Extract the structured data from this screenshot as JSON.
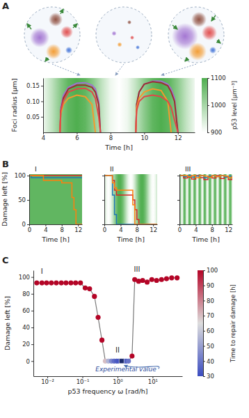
{
  "chart_data": [
    {
      "type": "line",
      "panel_label": "A",
      "x_label": "Time [h]",
      "y_label": "Foci radius [μm]",
      "x": [
        5.0,
        5.05,
        5.2,
        5.5,
        6.0,
        6.5,
        6.9,
        7.1,
        7.3,
        7.4,
        8.5,
        9.5,
        9.55,
        9.7,
        10.0,
        10.5,
        11.0,
        11.4,
        11.6,
        11.8,
        12.0
      ],
      "series": [
        {
          "color": "#a070d0",
          "values": [
            0,
            0.08,
            0.12,
            0.145,
            0.158,
            0.16,
            0.152,
            0.14,
            0.1,
            0,
            null,
            0,
            0.09,
            0.13,
            0.155,
            0.165,
            0.165,
            0.155,
            0.14,
            0.11,
            0
          ]
        },
        {
          "color": "#9a2f2f",
          "values": [
            0,
            0.07,
            0.11,
            0.14,
            0.152,
            0.152,
            0.145,
            0.13,
            0.09,
            0,
            null,
            0,
            0.09,
            0.13,
            0.155,
            0.163,
            0.16,
            0.15,
            0.13,
            0.1,
            0
          ]
        },
        {
          "color": "#f39a2e",
          "values": [
            0,
            0.06,
            0.09,
            0.11,
            0.12,
            0.115,
            0.09,
            0,
            null,
            null,
            null,
            0,
            0.08,
            0.11,
            0.13,
            0.14,
            0.135,
            0.1,
            0,
            null,
            null
          ]
        },
        {
          "color": "#e04848",
          "values": [
            0,
            0.07,
            0.1,
            0.13,
            0.14,
            0.142,
            0.13,
            0.11,
            0.05,
            0,
            null,
            0,
            0.07,
            0.1,
            0.115,
            0.12,
            0.115,
            0.1,
            0.08,
            0.04,
            0
          ]
        }
      ],
      "xlim": [
        4,
        13
      ],
      "xticks": [
        4,
        6,
        8,
        10,
        12
      ],
      "ylim": [
        0,
        0.175
      ],
      "yticks": [
        0.05,
        {
          "value": 0.1,
          "label": "0.10"
        },
        0.15
      ],
      "p53_level": {
        "x": [
          4,
          4.5,
          5,
          5.5,
          6,
          6.5,
          7,
          7.5,
          8,
          8.5,
          9,
          9.5,
          10,
          10.5,
          11,
          11.5,
          12,
          12.5,
          13
        ],
        "values": [
          919,
          969,
          1031,
          1081,
          1100,
          1081,
          1031,
          969,
          919,
          900,
          919,
          969,
          1031,
          1081,
          1100,
          1081,
          1031,
          969,
          919
        ]
      },
      "colorbar": {
        "label": "p53 level [μm⁻³]",
        "range": [
          900,
          1100
        ],
        "ticks": [
          900,
          1000,
          1100
        ]
      }
    },
    {
      "type": "line",
      "panel_label": "B",
      "title": "I",
      "x_label": "Time [h]",
      "y_label": "Damage left [%]",
      "line_style": "steps",
      "x": [
        0,
        0.5,
        3,
        3.5,
        7.5,
        8,
        10,
        10.5,
        11,
        11.5,
        13
      ],
      "series": [
        {
          "color": "#d62728",
          "values": [
            100,
            100,
            100,
            100,
            100,
            100,
            100,
            100,
            100,
            100,
            100
          ]
        },
        {
          "color": "#1f77b4",
          "values": [
            100,
            96,
            96,
            96,
            96,
            96,
            96,
            96,
            96,
            96,
            96
          ]
        },
        {
          "color": "#ff7f0e",
          "values": [
            100,
            100,
            100,
            90,
            90,
            85,
            85,
            55,
            30,
            0,
            0
          ]
        }
      ],
      "xlim": [
        0,
        13
      ],
      "xticks": [
        0,
        4,
        8,
        12
      ],
      "ylim": [
        0,
        103
      ],
      "yticks": [
        0,
        50,
        100
      ],
      "p53_level": {
        "x": [
          0,
          13
        ],
        "values": [
          1080,
          1080
        ]
      }
    },
    {
      "type": "line",
      "title": "II",
      "x_label": "Time [h]",
      "line_style": "steps",
      "tick_labels": "x",
      "x": [
        0,
        1.5,
        2,
        2.5,
        3,
        6.5,
        7,
        7.5,
        8,
        8.5,
        13
      ],
      "series": [
        {
          "color": "#d62728",
          "values": [
            100,
            100,
            90,
            70,
            60,
            60,
            50,
            30,
            10,
            0,
            0
          ]
        },
        {
          "color": "#1f77b4",
          "values": [
            100,
            100,
            60,
            20,
            0,
            0,
            0,
            0,
            0,
            0,
            0
          ]
        },
        {
          "color": "#ff7f0e",
          "values": [
            100,
            100,
            85,
            75,
            70,
            70,
            40,
            0,
            0,
            0,
            0
          ]
        }
      ],
      "xlim": [
        0,
        13
      ],
      "xticks": [
        0,
        4,
        8,
        12
      ],
      "ylim": [
        0,
        103
      ],
      "yticks": [
        0,
        50,
        100
      ],
      "p53_level": {
        "x": [
          0,
          0.5,
          1,
          1.5,
          2,
          2.5,
          3,
          3.5,
          4,
          4.5,
          5,
          5.5,
          6,
          6.5,
          7,
          7.5,
          8,
          8.5,
          9,
          9.5,
          10,
          10.5,
          11,
          11.5,
          12,
          12.5,
          13
        ],
        "values": [
          959,
          916,
          900,
          916,
          959,
          1014,
          1065,
          1096,
          1096,
          1065,
          1014,
          959,
          916,
          900,
          916,
          959,
          1014,
          1065,
          1096,
          1096,
          1065,
          1014,
          959,
          916,
          900,
          916,
          959
        ]
      }
    },
    {
      "type": "line",
      "title": "III",
      "x_label": "Time [h]",
      "line_style": "steps",
      "tick_labels": "x",
      "x": [
        0,
        1,
        2,
        3,
        4,
        5,
        6,
        7,
        8,
        9,
        10,
        11,
        12,
        13
      ],
      "series": [
        {
          "color": "#d62728",
          "values": [
            100,
            95,
            97,
            93,
            100,
            96,
            92,
            98,
            95,
            100,
            94,
            97,
            92,
            97
          ]
        },
        {
          "color": "#1f77b4",
          "values": [
            100,
            98,
            100,
            97,
            99,
            100,
            96,
            99,
            100,
            98,
            100,
            97,
            99,
            100
          ]
        },
        {
          "color": "#ff7f0e",
          "values": [
            100,
            100,
            98,
            100,
            96,
            100,
            99,
            97,
            100,
            98,
            100,
            99,
            96,
            100
          ]
        }
      ],
      "xlim": [
        0,
        13
      ],
      "xticks": [
        0,
        4,
        8,
        12
      ],
      "ylim": [
        0,
        103
      ],
      "yticks": [
        0,
        50,
        100
      ],
      "p53_level": {
        "x": [
          0,
          0.25,
          0.5,
          0.75,
          1,
          1.25,
          1.5,
          1.75,
          2,
          2.25,
          2.5,
          2.75,
          3,
          3.25,
          3.5,
          3.75,
          4,
          4.25,
          4.5,
          4.75,
          5,
          5.25,
          5.5,
          5.75,
          6,
          6.25,
          6.5,
          6.75,
          7,
          7.25,
          7.5,
          7.75,
          8,
          8.25,
          8.5,
          8.75,
          9,
          9.25,
          9.5,
          9.75,
          10,
          10.25,
          10.5,
          10.75,
          11,
          11.25,
          11.5,
          11.75,
          12,
          12.25,
          12.5,
          12.75,
          13
        ],
        "values": [
          1100,
          1031,
          919,
          919,
          1031,
          1100,
          1031,
          919,
          919,
          1031,
          1100,
          1031,
          919,
          919,
          1031,
          1100,
          1031,
          919,
          919,
          1031,
          1100,
          1031,
          919,
          919,
          1031,
          1100,
          1031,
          919,
          919,
          1031,
          1100,
          1031,
          919,
          919,
          1031,
          1100,
          1031,
          919,
          919,
          1031,
          1100,
          1031,
          919,
          919,
          1031,
          1100,
          1031,
          919,
          919,
          1031,
          1100,
          1031,
          919
        ]
      }
    },
    {
      "type": "line",
      "marker": "circle",
      "panel_label": "C",
      "x_label": "p53 frequency ω [rad/h]",
      "y_label": "Damage left [%]",
      "log": "x",
      "x": [
        0.005,
        0.007,
        0.0095,
        0.013,
        0.018,
        0.025,
        0.034,
        0.047,
        0.064,
        0.088,
        0.12,
        0.16,
        0.22,
        0.28,
        0.36,
        0.45,
        0.55,
        0.67,
        0.8,
        0.95,
        1.1,
        1.3,
        1.5,
        1.75,
        2.05,
        2.6,
        3.1,
        4.0,
        5.2,
        7.0,
        9.5,
        13,
        18,
        25,
        35,
        50
      ],
      "series": [
        {
          "color": "#7a7a7a",
          "values": [
            93,
            93,
            93,
            93,
            93,
            93,
            93,
            93,
            93,
            93,
            87,
            86,
            77,
            52,
            25,
            0,
            0,
            0,
            0,
            0,
            0,
            0,
            0,
            0,
            0,
            6,
            97,
            95,
            96,
            94,
            97,
            96,
            97,
            98,
            99,
            99
          ],
          "time_to_repair": [
            100,
            100,
            100,
            100,
            100,
            100,
            100,
            100,
            100,
            100,
            100,
            100,
            100,
            100,
            100,
            70,
            55,
            45,
            38,
            34,
            32,
            31,
            32,
            35,
            40,
            100,
            100,
            100,
            100,
            100,
            100,
            100,
            100,
            100,
            100,
            100
          ]
        }
      ],
      "xlim": [
        0.004,
        70
      ],
      "xticks": [
        {
          "value": 0.01,
          "label": "10⁻²"
        },
        {
          "value": 0.1,
          "label": "10⁻¹"
        },
        {
          "value": 1,
          "label": "10⁰"
        },
        {
          "value": 10,
          "label": "10¹"
        }
      ],
      "ylim": [
        -18,
        108
      ],
      "yticks": [
        0,
        20,
        40,
        60,
        80,
        100
      ],
      "annotations": [
        {
          "text": "I",
          "x": 0.007,
          "y": 104
        },
        {
          "text": "II",
          "x": 1.0,
          "y": 10
        },
        {
          "text": "III",
          "x": 3.6,
          "y": 106
        }
      ],
      "experimental_value": {
        "label": "Experimental value",
        "x": 1.3,
        "y": 0
      },
      "colorbar": {
        "label": "Time to repair damage [h]",
        "range": [
          30,
          100
        ],
        "ticks": [
          30,
          40,
          50,
          60,
          70,
          80,
          90,
          100
        ]
      }
    }
  ]
}
